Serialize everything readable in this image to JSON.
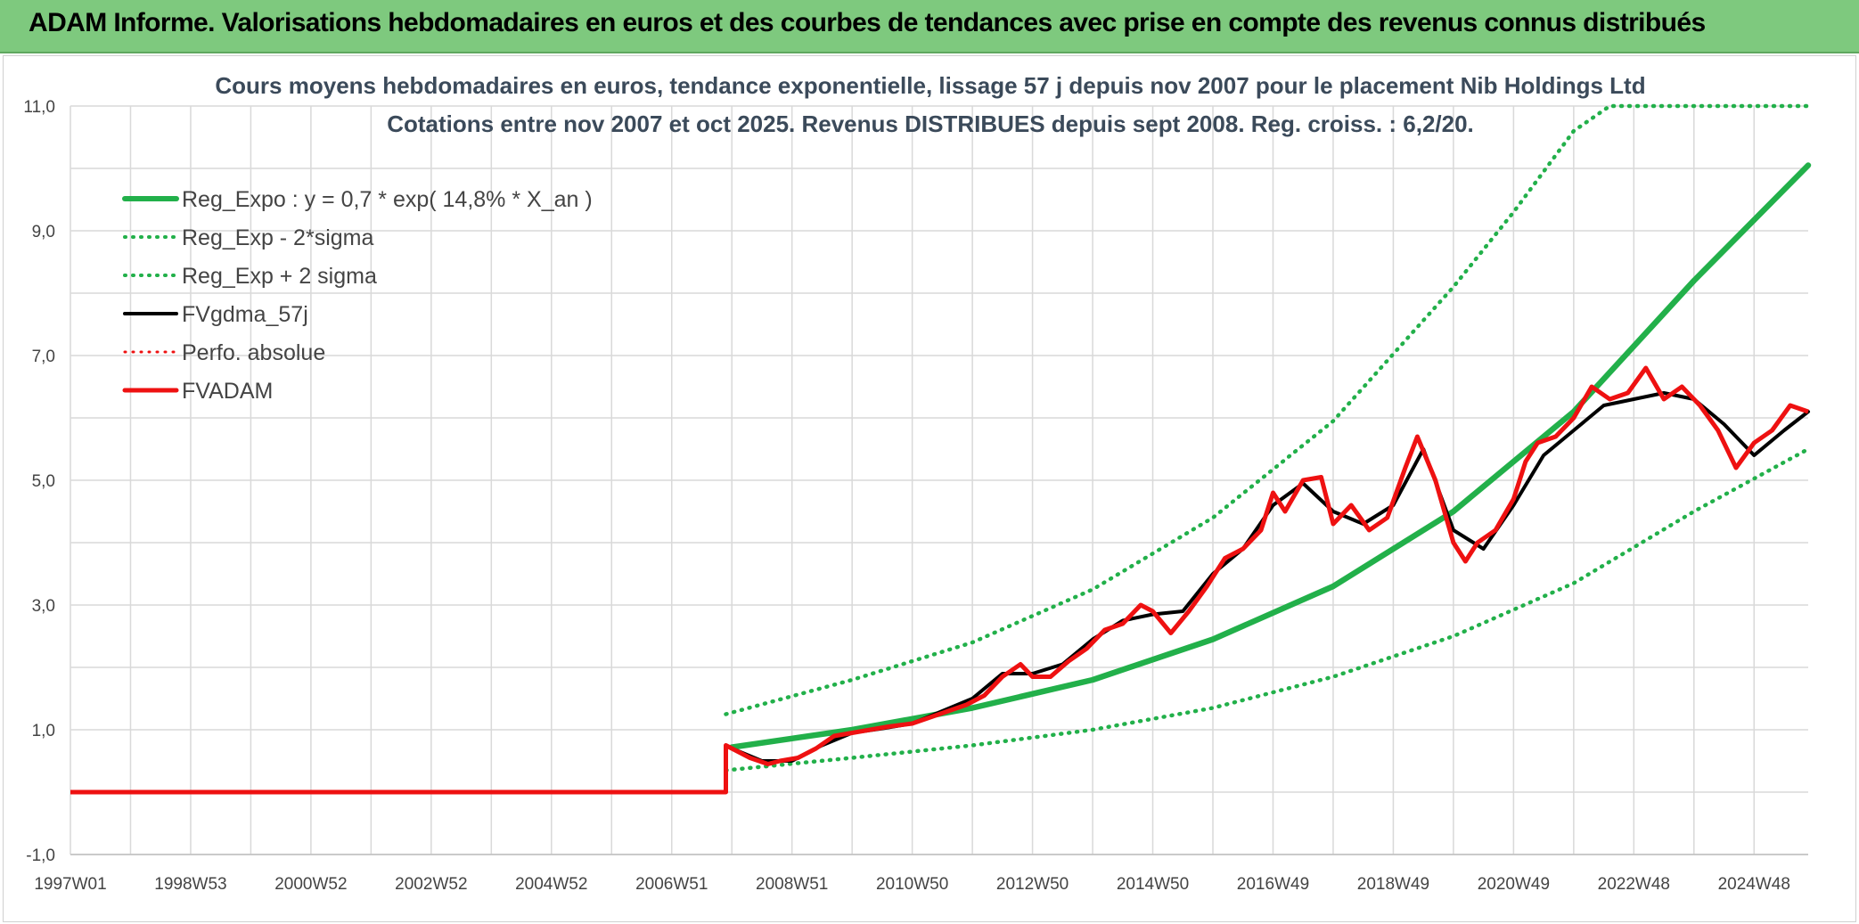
{
  "banner": {
    "title": "ADAM Informe. Valorisations hebdomadaires en euros et des courbes de tendances avec prise en compte des revenus connus distribués"
  },
  "colors": {
    "banner_bg": "#7ec97e",
    "trend": "#22b04a",
    "fv": "#000000",
    "adam": "#ee1111",
    "grid": "#d9d9d9",
    "corner": "#f2c200"
  },
  "chart_data": {
    "type": "line",
    "title_lines": [
      "Cours moyens hebdomadaires en euros, tendance exponentielle, lissage 57 j depuis nov 2007 pour le placement Nib Holdings Ltd",
      "Cotations entre nov 2007 et oct 2025. Revenus DISTRIBUES depuis sept 2008. Reg. croiss. : 6,2/20."
    ],
    "x_range": [
      1997.0,
      2025.9
    ],
    "x_ticks": [
      {
        "label": "1997W01",
        "x": 1997.0
      },
      {
        "label": "1998W53",
        "x": 1999.0
      },
      {
        "label": "2000W52",
        "x": 2001.0
      },
      {
        "label": "2002W52",
        "x": 2003.0
      },
      {
        "label": "2004W52",
        "x": 2005.0
      },
      {
        "label": "2006W51",
        "x": 2007.0
      },
      {
        "label": "2008W51",
        "x": 2009.0
      },
      {
        "label": "2010W50",
        "x": 2011.0
      },
      {
        "label": "2012W50",
        "x": 2013.0
      },
      {
        "label": "2014W50",
        "x": 2015.0
      },
      {
        "label": "2016W49",
        "x": 2017.0
      },
      {
        "label": "2018W49",
        "x": 2019.0
      },
      {
        "label": "2020W49",
        "x": 2021.0
      },
      {
        "label": "2022W48",
        "x": 2023.0
      },
      {
        "label": "2024W48",
        "x": 2025.0
      }
    ],
    "y_range": [
      -1.0,
      11.0
    ],
    "y_ticks": [
      "-1,0",
      "1,0",
      "3,0",
      "5,0",
      "7,0",
      "9,0",
      "11,0"
    ],
    "y_tick_values": [
      -1,
      1,
      3,
      5,
      7,
      9,
      11
    ],
    "grid": true,
    "legend_position": "top-left",
    "legend": [
      {
        "label": "Reg_Expo : y = 0,7 * exp( 14,8% *  X_an )",
        "color": "#22b04a",
        "style": "solid",
        "width": 6
      },
      {
        "label": "Reg_Exp - 2*sigma",
        "color": "#22b04a",
        "style": "dotted",
        "width": 4
      },
      {
        "label": "Reg_Exp + 2 sigma",
        "color": "#22b04a",
        "style": "dotted",
        "width": 4
      },
      {
        "label": "FVgdma_57j",
        "color": "#000000",
        "style": "solid",
        "width": 4
      },
      {
        "label": "Perfo. absolue",
        "color": "#ee1111",
        "style": "dotted",
        "width": 3
      },
      {
        "label": "FVADAM",
        "color": "#ee1111",
        "style": "solid",
        "width": 5
      }
    ],
    "series": [
      {
        "name": "FVADAM",
        "x": [
          1997.0,
          2007.9,
          2007.9,
          2008.0,
          2008.3,
          2008.6,
          2008.8,
          2009.1,
          2009.4,
          2009.7,
          2010.0,
          2010.3,
          2010.6,
          2011.0,
          2011.3,
          2011.6,
          2011.9,
          2012.2,
          2012.5,
          2012.8,
          2013.0,
          2013.3,
          2013.6,
          2013.9,
          2014.2,
          2014.5,
          2014.8,
          2015.0,
          2015.3,
          2015.6,
          2015.9,
          2016.2,
          2016.5,
          2016.8,
          2017.0,
          2017.2,
          2017.5,
          2017.8,
          2018.0,
          2018.3,
          2018.6,
          2018.9,
          2019.2,
          2019.4,
          2019.7,
          2020.0,
          2020.2,
          2020.4,
          2020.7,
          2021.0,
          2021.2,
          2021.4,
          2021.7,
          2022.0,
          2022.3,
          2022.6,
          2022.9,
          2023.2,
          2023.5,
          2023.8,
          2024.1,
          2024.4,
          2024.7,
          2025.0,
          2025.3,
          2025.6,
          2025.9
        ],
        "y": [
          0.0,
          0.0,
          0.75,
          0.7,
          0.55,
          0.45,
          0.5,
          0.55,
          0.7,
          0.9,
          0.95,
          1.0,
          1.05,
          1.1,
          1.2,
          1.3,
          1.4,
          1.55,
          1.85,
          2.05,
          1.85,
          1.85,
          2.1,
          2.3,
          2.6,
          2.7,
          3.0,
          2.9,
          2.55,
          2.9,
          3.3,
          3.75,
          3.9,
          4.2,
          4.8,
          4.5,
          5.0,
          5.05,
          4.3,
          4.6,
          4.2,
          4.4,
          5.2,
          5.7,
          5.0,
          4.0,
          3.7,
          4.0,
          4.2,
          4.7,
          5.3,
          5.6,
          5.7,
          6.0,
          6.5,
          6.3,
          6.4,
          6.8,
          6.3,
          6.5,
          6.2,
          5.8,
          5.2,
          5.6,
          5.8,
          6.2,
          6.1
        ]
      },
      {
        "name": "FVgdma_57j",
        "x": [
          2008.0,
          2008.5,
          2009.0,
          2009.5,
          2010.0,
          2010.5,
          2011.0,
          2011.5,
          2012.0,
          2012.5,
          2013.0,
          2013.5,
          2014.0,
          2014.5,
          2015.0,
          2015.5,
          2016.0,
          2016.5,
          2017.0,
          2017.5,
          2018.0,
          2018.5,
          2019.0,
          2019.5,
          2020.0,
          2020.5,
          2021.0,
          2021.5,
          2022.0,
          2022.5,
          2023.0,
          2023.5,
          2024.0,
          2024.5,
          2025.0,
          2025.5,
          2025.9
        ],
        "y": [
          0.7,
          0.5,
          0.5,
          0.75,
          0.95,
          1.02,
          1.1,
          1.3,
          1.5,
          1.9,
          1.9,
          2.05,
          2.45,
          2.75,
          2.85,
          2.9,
          3.5,
          3.9,
          4.6,
          4.95,
          4.5,
          4.3,
          4.6,
          5.5,
          4.2,
          3.9,
          4.6,
          5.4,
          5.8,
          6.2,
          6.3,
          6.4,
          6.3,
          5.9,
          5.4,
          5.8,
          6.1
        ]
      },
      {
        "name": "Reg_Expo",
        "x": [
          2008.0,
          2010.0,
          2012.0,
          2014.0,
          2016.0,
          2018.0,
          2020.0,
          2022.0,
          2024.0,
          2025.9
        ],
        "y": [
          0.72,
          1.0,
          1.35,
          1.8,
          2.45,
          3.3,
          4.5,
          6.1,
          8.2,
          10.05
        ]
      },
      {
        "name": "Reg_Exp - 2*sigma",
        "x": [
          2007.9,
          2010.0,
          2012.0,
          2014.0,
          2016.0,
          2018.0,
          2020.0,
          2022.0,
          2024.0,
          2025.9
        ],
        "y": [
          0.35,
          0.55,
          0.75,
          1.0,
          1.35,
          1.85,
          2.5,
          3.35,
          4.5,
          5.5
        ]
      },
      {
        "name": "Reg_Exp + 2 sigma",
        "x": [
          2007.9,
          2010.0,
          2012.0,
          2014.0,
          2016.0,
          2018.0,
          2020.0,
          2021.0,
          2022.0,
          2022.6,
          2023.0,
          2025.9
        ],
        "y": [
          1.25,
          1.8,
          2.4,
          3.25,
          4.4,
          5.95,
          8.1,
          9.3,
          10.6,
          11.0,
          11.0,
          11.0
        ]
      }
    ]
  }
}
